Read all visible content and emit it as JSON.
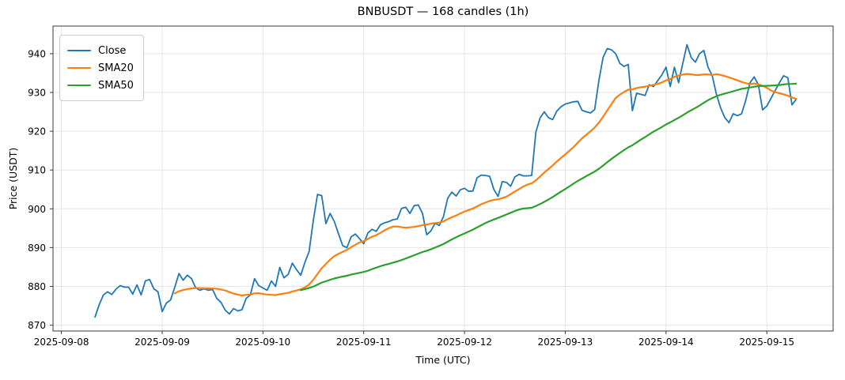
{
  "figure": {
    "title": "BNBUSDT — 168 candles (1h)"
  },
  "legend": {
    "items": [
      {
        "label": "Close"
      },
      {
        "label": "SMA20"
      },
      {
        "label": "SMA50"
      }
    ]
  },
  "chart_data": {
    "type": "line",
    "title": "BNBUSDT — 168 candles (1h)",
    "xlabel": "Time (UTC)",
    "ylabel": "Price (USDT)",
    "grid": true,
    "legend_position": "upper left",
    "background": "#ffffff",
    "grid_color": "#e6e6e6",
    "spine_color": "#3a3a3a",
    "x_start": "2025-09-08 08:00",
    "x_step_hours": 1,
    "n_points": 168,
    "xlim_hours": [
      -10,
      175.8
    ],
    "ylim": [
      868.5,
      947.1
    ],
    "x_tick_hours": [
      -8,
      16,
      40,
      64,
      88,
      112,
      136,
      160
    ],
    "x_tick_labels": [
      "2025-09-08",
      "2025-09-09",
      "2025-09-10",
      "2025-09-11",
      "2025-09-12",
      "2025-09-13",
      "2025-09-14",
      "2025-09-15"
    ],
    "y_ticks": [
      870,
      880,
      890,
      900,
      910,
      920,
      930,
      940
    ],
    "series": [
      {
        "name": "Close",
        "color": "#1f77b4",
        "line_width": 1.8,
        "values": [
          872.1,
          875.3,
          877.8,
          878.6,
          877.9,
          879.3,
          880.2,
          879.8,
          879.8,
          878.0,
          880.4,
          877.8,
          881.4,
          881.8,
          879.4,
          878.6,
          873.5,
          875.7,
          876.5,
          879.8,
          883.3,
          881.6,
          882.9,
          882.0,
          879.6,
          879.0,
          879.4,
          879.0,
          879.2,
          876.9,
          875.9,
          873.9,
          872.9,
          874.3,
          873.7,
          874.0,
          876.9,
          877.8,
          882.0,
          880.2,
          879.6,
          879.0,
          881.4,
          880.0,
          884.9,
          882.2,
          883.1,
          886.0,
          884.3,
          882.9,
          886.2,
          889.0,
          897.0,
          903.7,
          903.4,
          896.2,
          898.8,
          896.7,
          893.5,
          890.5,
          890.0,
          892.8,
          893.5,
          892.3,
          891.0,
          893.8,
          894.7,
          894.2,
          895.9,
          896.4,
          896.7,
          897.2,
          897.4,
          900.1,
          900.4,
          898.8,
          900.8,
          901.0,
          898.8,
          893.3,
          894.3,
          896.3,
          895.7,
          898.0,
          902.7,
          904.3,
          903.3,
          904.9,
          905.3,
          904.5,
          904.6,
          908.0,
          908.7,
          908.6,
          908.4,
          905.0,
          903.2,
          907.0,
          906.8,
          905.8,
          908.2,
          908.9,
          908.5,
          908.5,
          908.6,
          919.8,
          923.4,
          925.0,
          923.5,
          923.0,
          925.2,
          926.3,
          927.0,
          927.3,
          927.6,
          927.7,
          925.4,
          925.0,
          924.7,
          925.6,
          933.0,
          939.0,
          941.3,
          941.0,
          940.0,
          937.5,
          936.7,
          937.2,
          925.3,
          929.8,
          929.5,
          929.2,
          932.0,
          931.5,
          933.0,
          934.5,
          936.5,
          931.5,
          936.5,
          932.5,
          937.5,
          942.3,
          939.0,
          937.8,
          940.0,
          940.8,
          936.5,
          934.3,
          929.5,
          926.0,
          923.5,
          922.2,
          924.5,
          924.0,
          924.5,
          928.0,
          932.5,
          934.0,
          932.0,
          925.5,
          926.5,
          928.5,
          930.5,
          932.5,
          934.3,
          933.8,
          926.8,
          928.2
        ]
      },
      {
        "name": "SMA20",
        "color": "#ff7f0e",
        "line_width": 2.2,
        "derived_from": "Close",
        "sma_window": 20
      },
      {
        "name": "SMA50",
        "color": "#2ca02c",
        "line_width": 2.2,
        "derived_from": "Close",
        "sma_window": 50
      }
    ]
  }
}
